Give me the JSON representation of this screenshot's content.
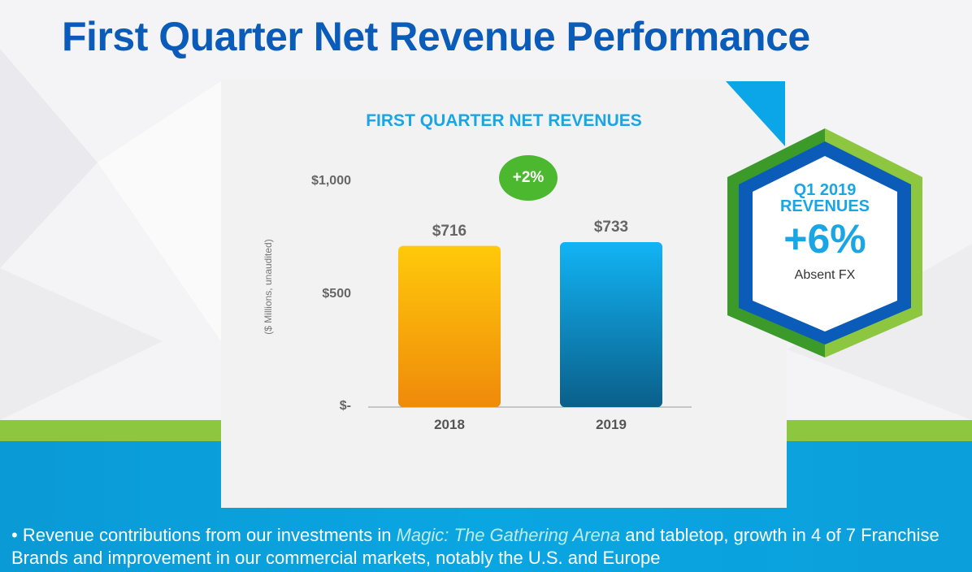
{
  "title": "First Quarter Net Revenue Performance",
  "chart_data": {
    "type": "bar",
    "title": "FIRST QUARTER NET REVENUES",
    "categories": [
      "2018",
      "2019"
    ],
    "values": [
      716,
      733
    ],
    "value_labels": [
      "$716",
      "$733"
    ],
    "ylabel": "($ Millions, unaudited)",
    "ylim": [
      0,
      1000
    ],
    "yticks": [
      0,
      500,
      1000
    ],
    "ytick_labels": [
      "$-",
      "$500",
      "$1,000"
    ],
    "colors": [
      "#f7a70d",
      "#0d9fe0"
    ],
    "annotation": "+2%"
  },
  "callout": {
    "line1": "Q1 2019",
    "line2": "REVENUES",
    "value": "+6%",
    "note": "Absent FX"
  },
  "bullet": {
    "prefix": "Revenue contributions from our investments in ",
    "emphasis": "Magic: The Gathering Arena",
    "suffix": " and tabletop, growth in 4 of 7 Franchise Brands and improvement in our commercial markets, notably the U.S. and Europe"
  }
}
